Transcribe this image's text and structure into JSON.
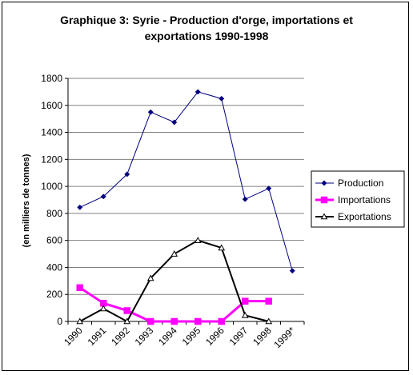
{
  "chart_data": {
    "type": "line",
    "title_line1": "Graphique 3: Syrie - Production d'orge, importations et",
    "title_line2": "exportations 1990-1998",
    "ylabel": "(en milliers de tonnes)",
    "xlabel": "",
    "categories": [
      "1990",
      "1991",
      "1992",
      "1993",
      "1994",
      "1995",
      "1996",
      "1997",
      "1998",
      "1999*"
    ],
    "ylim": [
      0,
      1800
    ],
    "yticks": [
      0,
      200,
      400,
      600,
      800,
      1000,
      1200,
      1400,
      1600,
      1800
    ],
    "grid": true,
    "legend_position": "right",
    "series": [
      {
        "name": "Production",
        "color": "#000080",
        "marker": "diamond",
        "values": [
          845,
          925,
          1090,
          1550,
          1475,
          1700,
          1650,
          905,
          985,
          375
        ]
      },
      {
        "name": "Importations",
        "color": "#ff00ff",
        "marker": "square",
        "values": [
          250,
          135,
          80,
          0,
          0,
          0,
          0,
          150,
          150,
          null
        ]
      },
      {
        "name": "Exportations",
        "color": "#000000",
        "marker": "triangle",
        "values": [
          0,
          95,
          0,
          320,
          500,
          600,
          545,
          45,
          0,
          null
        ]
      }
    ]
  }
}
